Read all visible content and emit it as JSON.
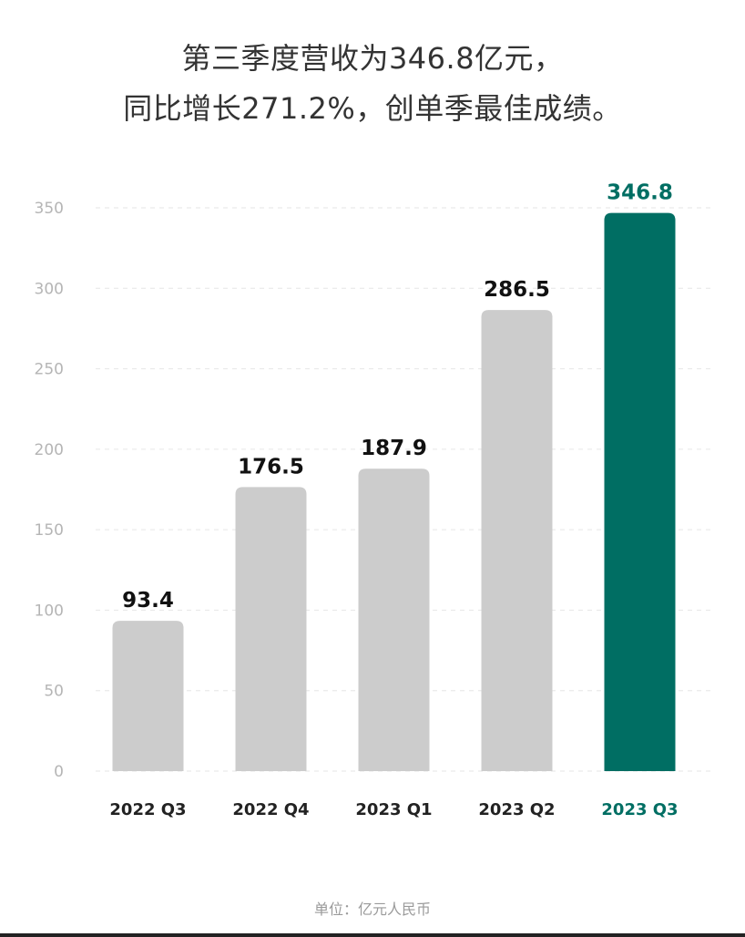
{
  "header": {
    "title_line1": "第三季度营收为346.8亿元，",
    "title_line2": "同比增长271.2%，创单季最佳成绩。"
  },
  "footer": {
    "unit_label": "单位：亿元人民币"
  },
  "colors": {
    "bar": "#cccccc",
    "highlight": "#006e63",
    "grid": "#e6e6e6",
    "tick": "#b5b5b5",
    "category": "#222222",
    "value": "#111111"
  },
  "chart_data": {
    "type": "bar",
    "categories": [
      "2022 Q3",
      "2022 Q4",
      "2023 Q1",
      "2023 Q2",
      "2023 Q3"
    ],
    "values": [
      93.4,
      176.5,
      187.9,
      286.5,
      346.8
    ],
    "value_labels": [
      "93.4",
      "176.5",
      "187.9",
      "286.5",
      "346.8"
    ],
    "highlight_index": 4,
    "yticks": [
      "0",
      "50",
      "100",
      "150",
      "200",
      "250",
      "300",
      "350"
    ],
    "ylim": [
      0,
      350
    ],
    "grid": true
  }
}
